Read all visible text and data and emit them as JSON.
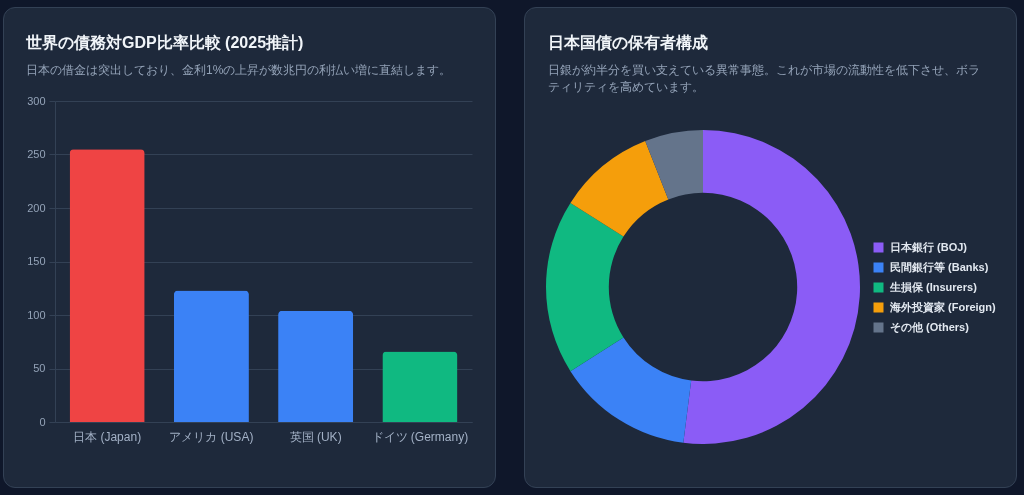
{
  "chart_data": [
    {
      "type": "bar",
      "title": "世界の債務対GDP比率比較 (2025推計)",
      "subtitle": "日本の借金は突出しており、金利1%の上昇が数兆円の利払い増に直結します。",
      "categories": [
        "日本 (Japan)",
        "アメリカ (USA)",
        "英国 (UK)",
        "ドイツ (Germany)"
      ],
      "values": [
        255,
        123,
        104,
        66
      ],
      "colors": [
        "#ef4444",
        "#3b82f6",
        "#3b82f6",
        "#10b981"
      ],
      "ylim": [
        0,
        300
      ],
      "yticks": [
        0,
        50,
        100,
        150,
        200,
        250,
        300
      ],
      "grid": "y"
    },
    {
      "type": "donut",
      "title": "日本国債の保有者構成",
      "subtitle": "日銀が約半分を買い支えている異常事態。これが市場の流動性を低下させ、ボラティリティを高めています。",
      "categories": [
        "日本銀行 (BOJ)",
        "民間銀行等 (Banks)",
        "生損保 (Insurers)",
        "海外投資家 (Foreign)",
        "その他 (Others)"
      ],
      "values": [
        52,
        14,
        18,
        10,
        6
      ],
      "colors": [
        "#8b5cf6",
        "#3b82f6",
        "#10b981",
        "#f59e0b",
        "#64748b"
      ],
      "legend": "right"
    }
  ]
}
